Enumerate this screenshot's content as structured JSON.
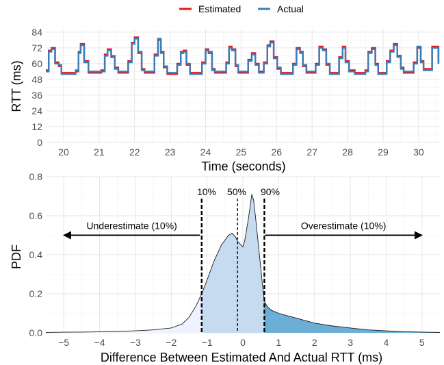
{
  "chart_data": [
    {
      "type": "line",
      "xlabel": "Time (seconds)",
      "ylabel": "RTT (ms)",
      "xlim": [
        19.5,
        30.6
      ],
      "ylim": [
        0,
        86
      ],
      "x_ticks": [
        "20",
        "21",
        "22",
        "23",
        "24",
        "25",
        "26",
        "27",
        "28",
        "29",
        "30"
      ],
      "y_ticks": [
        "0",
        "12",
        "24",
        "36",
        "48",
        "60",
        "72",
        "84"
      ],
      "grid": true,
      "legend_position": "top",
      "series": [
        {
          "name": "Estimated",
          "color": "#e41a1c"
        },
        {
          "name": "Actual",
          "color": "#377eb8"
        }
      ],
      "points": [
        [
          19.5,
          55,
          54
        ],
        [
          19.58,
          70,
          69
        ],
        [
          19.66,
          72,
          71
        ],
        [
          19.76,
          61,
          60
        ],
        [
          19.86,
          58,
          59
        ],
        [
          19.94,
          53,
          52
        ],
        [
          20.34,
          54,
          55
        ],
        [
          20.42,
          69,
          68
        ],
        [
          20.48,
          75,
          74
        ],
        [
          20.58,
          62,
          61
        ],
        [
          20.7,
          53,
          54
        ],
        [
          21.06,
          55,
          54
        ],
        [
          21.16,
          67,
          66
        ],
        [
          21.24,
          71,
          70
        ],
        [
          21.34,
          65,
          66
        ],
        [
          21.44,
          57,
          56
        ],
        [
          21.54,
          53,
          54
        ],
        [
          21.82,
          62,
          61
        ],
        [
          21.92,
          76,
          75
        ],
        [
          22.0,
          80,
          79
        ],
        [
          22.1,
          68,
          69
        ],
        [
          22.2,
          56,
          55
        ],
        [
          22.28,
          53,
          54
        ],
        [
          22.56,
          67,
          66
        ],
        [
          22.66,
          78,
          79
        ],
        [
          22.74,
          69,
          68
        ],
        [
          22.82,
          57,
          58
        ],
        [
          22.92,
          52,
          53
        ],
        [
          23.2,
          60,
          59
        ],
        [
          23.3,
          69,
          68
        ],
        [
          23.38,
          70,
          69
        ],
        [
          23.46,
          59,
          60
        ],
        [
          23.56,
          53,
          52
        ],
        [
          23.9,
          61,
          60
        ],
        [
          24.0,
          71,
          70
        ],
        [
          24.08,
          68,
          69
        ],
        [
          24.18,
          56,
          55
        ],
        [
          24.26,
          53,
          54
        ],
        [
          24.58,
          61,
          60
        ],
        [
          24.66,
          73,
          72
        ],
        [
          24.74,
          71,
          70
        ],
        [
          24.84,
          58,
          59
        ],
        [
          24.92,
          53,
          54
        ],
        [
          25.2,
          63,
          62
        ],
        [
          25.3,
          68,
          67
        ],
        [
          25.4,
          60,
          59
        ],
        [
          25.5,
          54,
          53
        ],
        [
          25.64,
          61,
          60
        ],
        [
          25.74,
          74,
          73
        ],
        [
          25.82,
          77,
          76
        ],
        [
          25.92,
          65,
          64
        ],
        [
          26.02,
          56,
          57
        ],
        [
          26.12,
          53,
          52
        ],
        [
          26.46,
          60,
          59
        ],
        [
          26.56,
          72,
          71
        ],
        [
          26.66,
          69,
          68
        ],
        [
          26.74,
          58,
          59
        ],
        [
          26.84,
          53,
          54
        ],
        [
          27.1,
          60,
          59
        ],
        [
          27.2,
          73,
          72
        ],
        [
          27.3,
          71,
          70
        ],
        [
          27.4,
          59,
          60
        ],
        [
          27.5,
          53,
          52
        ],
        [
          27.76,
          65,
          64
        ],
        [
          27.86,
          73,
          72
        ],
        [
          27.94,
          62,
          61
        ],
        [
          28.04,
          55,
          54
        ],
        [
          28.2,
          53,
          52
        ],
        [
          28.5,
          55,
          54
        ],
        [
          28.58,
          69,
          68
        ],
        [
          28.68,
          72,
          71
        ],
        [
          28.78,
          60,
          59
        ],
        [
          28.86,
          53,
          52
        ],
        [
          29.1,
          62,
          61
        ],
        [
          29.2,
          70,
          69
        ],
        [
          29.3,
          75,
          74
        ],
        [
          29.4,
          66,
          65
        ],
        [
          29.5,
          57,
          56
        ],
        [
          29.58,
          53,
          54
        ],
        [
          29.86,
          61,
          60
        ],
        [
          29.96,
          72,
          73
        ],
        [
          30.06,
          62,
          61
        ],
        [
          30.14,
          56,
          55
        ],
        [
          30.38,
          73,
          72
        ],
        [
          30.56,
          60,
          60
        ]
      ]
    },
    {
      "type": "area",
      "xlabel": "Difference Between Estimated And Actual RTT (ms)",
      "ylabel": "PDF",
      "xlim": [
        -5.5,
        5.5
      ],
      "ylim": [
        0,
        0.8
      ],
      "x_ticks": [
        "−5",
        "−4",
        "−3",
        "−2",
        "−1",
        "0",
        "1",
        "2",
        "3",
        "4",
        "5"
      ],
      "y_ticks": [
        "0.0",
        "0.2",
        "0.4",
        "0.6",
        "0.8"
      ],
      "grid": true,
      "fill_colors": [
        "#eff3ff",
        "#c6dbef",
        "#6baed6"
      ],
      "x": [
        -5.5,
        -5.0,
        -4.5,
        -4.0,
        -3.5,
        -3.0,
        -2.5,
        -2.0,
        -1.7,
        -1.5,
        -1.3,
        -1.15,
        -1.0,
        -0.8,
        -0.6,
        -0.4,
        -0.3,
        -0.2,
        -0.15,
        -0.1,
        0.0,
        0.05,
        0.15,
        0.25,
        0.3,
        0.35,
        0.45,
        0.55,
        0.6,
        0.7,
        0.8,
        1.0,
        1.3,
        1.6,
        2.0,
        2.5,
        3.0,
        3.5,
        4.0,
        4.5,
        5.0,
        5.5
      ],
      "y": [
        0.002,
        0.003,
        0.004,
        0.005,
        0.007,
        0.01,
        0.015,
        0.025,
        0.045,
        0.08,
        0.14,
        0.2,
        0.27,
        0.37,
        0.45,
        0.5,
        0.51,
        0.49,
        0.47,
        0.46,
        0.44,
        0.47,
        0.58,
        0.71,
        0.68,
        0.6,
        0.42,
        0.24,
        0.16,
        0.13,
        0.115,
        0.1,
        0.085,
        0.07,
        0.05,
        0.035,
        0.025,
        0.015,
        0.01,
        0.006,
        0.004,
        0.002
      ],
      "quantiles": [
        {
          "label": "10%",
          "x": -1.15
        },
        {
          "label": "50%",
          "x": -0.15
        },
        {
          "label": "90%",
          "x": 0.6
        }
      ],
      "annotations": [
        {
          "label": "Underestimate (10%)",
          "x_from": -1.2,
          "x_to": -5.0,
          "y": 0.5
        },
        {
          "label": "Overestimate (10%)",
          "x_from": 0.62,
          "x_to": 5.0,
          "y": 0.5
        }
      ]
    }
  ]
}
